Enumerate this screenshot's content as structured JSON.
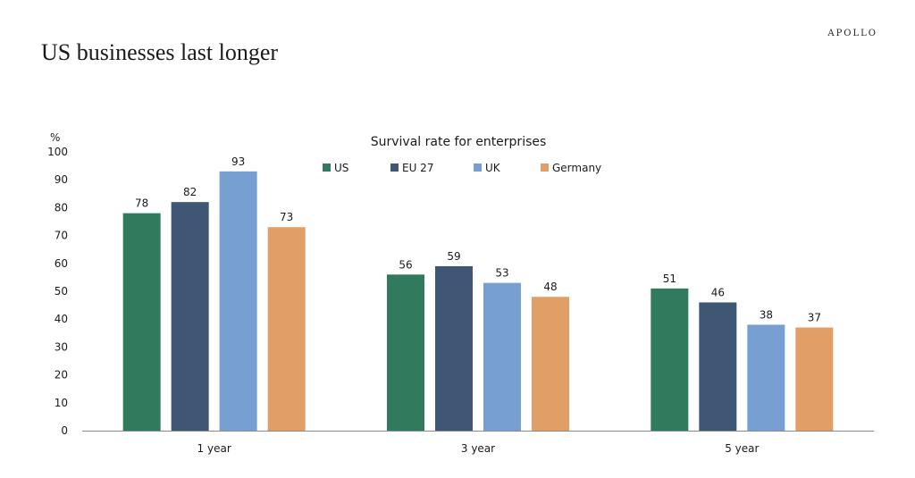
{
  "brand": "APOLLO",
  "headline": "US businesses last longer",
  "chart_data": {
    "type": "bar",
    "title": "Survival rate for enterprises",
    "ylabel": "%",
    "xlabel": "",
    "ylim": [
      0,
      100
    ],
    "yticks": [
      0,
      10,
      20,
      30,
      40,
      50,
      60,
      70,
      80,
      90,
      100
    ],
    "grid": false,
    "legend_position": "top",
    "categories": [
      "1 year",
      "3 year",
      "5 year"
    ],
    "series": [
      {
        "name": "US",
        "color": "#317a5e",
        "values": [
          78,
          56,
          51
        ]
      },
      {
        "name": "EU 27",
        "color": "#3f5675",
        "values": [
          82,
          59,
          46
        ]
      },
      {
        "name": "UK",
        "color": "#779fd1",
        "values": [
          93,
          53,
          38
        ]
      },
      {
        "name": "Germany",
        "color": "#e19e66",
        "values": [
          73,
          48,
          37
        ]
      }
    ]
  }
}
